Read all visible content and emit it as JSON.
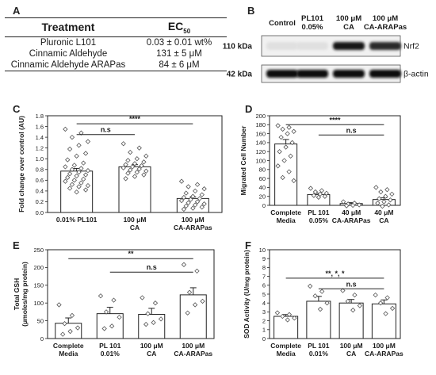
{
  "panel_letters": {
    "a": "A",
    "b": "B",
    "c": "C",
    "d": "D",
    "e": "E",
    "f": "F"
  },
  "ec50_table": {
    "header_treatment": "Treatment",
    "header_ec": "EC",
    "header_ec_sub": "50",
    "rows": [
      {
        "treatment": "Pluronic L101",
        "value": "0.03 ± 0.01 wt%"
      },
      {
        "treatment": "Cinnamic Aldehyde",
        "value": "131 ± 5 μM"
      },
      {
        "treatment": "Cinnamic Aldehyde ARAPas",
        "value": "84 ± 6 μM"
      }
    ]
  },
  "western_blot": {
    "lanes": [
      {
        "line1": "Control",
        "line2": ""
      },
      {
        "line1": "PL101",
        "line2": "0.05%"
      },
      {
        "line1": "100 μM",
        "line2": "CA"
      },
      {
        "line1": "100 μM",
        "line2": "CA-ARAPas"
      }
    ],
    "rows": [
      {
        "mw": "110 kDa",
        "protein": "Nrf2",
        "intensity": [
          0.05,
          0.05,
          0.95,
          0.85
        ]
      },
      {
        "mw": "42 kDa",
        "protein": "β-actin",
        "intensity": [
          1,
          1,
          1,
          1
        ]
      }
    ]
  },
  "chart_data": [
    {
      "id": "C",
      "type": "bar",
      "ylabel": "Fold change over control (AU)",
      "ylim": [
        0,
        1.8
      ],
      "yticks": [
        "0.0",
        "0.2",
        "0.4",
        "0.6",
        "0.8",
        "1.0",
        "1.2",
        "1.4",
        "1.6",
        "1.8"
      ],
      "categories": [
        [
          "0.01% PL101"
        ],
        [
          "100 μM",
          "CA"
        ],
        [
          "100 μM",
          "CA-ARAPas"
        ]
      ],
      "values": [
        0.77,
        0.85,
        0.26
      ],
      "errors": [
        0.05,
        0.04,
        0.03
      ],
      "points": [
        [
          1.55,
          1.48,
          1.4,
          1.32,
          1.25,
          1.18,
          1.1,
          1.05,
          0.98,
          0.92,
          0.88,
          0.85,
          0.82,
          0.8,
          0.78,
          0.75,
          0.72,
          0.7,
          0.68,
          0.65,
          0.62,
          0.6,
          0.58,
          0.55,
          0.52,
          0.5,
          0.48,
          0.45,
          0.42,
          0.38
        ],
        [
          1.28,
          1.2,
          1.12,
          1.05,
          1.0,
          0.97,
          0.94,
          0.91,
          0.89,
          0.87,
          0.85,
          0.83,
          0.81,
          0.79,
          0.77,
          0.75,
          0.73,
          0.7,
          0.67,
          0.63
        ],
        [
          0.58,
          0.52,
          0.48,
          0.44,
          0.4,
          0.36,
          0.33,
          0.3,
          0.28,
          0.26,
          0.24,
          0.22,
          0.2,
          0.18,
          0.16,
          0.14,
          0.12,
          0.1,
          0.08,
          0.06
        ]
      ],
      "brackets": [
        {
          "from": 0,
          "to": 1,
          "label": "n.s",
          "y": 1.45
        },
        {
          "from": 0,
          "to": 2,
          "label": "****",
          "y": 1.65
        }
      ]
    },
    {
      "id": "D",
      "type": "bar",
      "ylabel": "Migrated Cell Number",
      "ylim": [
        0,
        200
      ],
      "yticks": [
        "0",
        "20",
        "40",
        "60",
        "80",
        "100",
        "120",
        "140",
        "160",
        "180",
        "200"
      ],
      "categories": [
        [
          "Complete",
          "Media"
        ],
        [
          "PL 101",
          "0.05%"
        ],
        [
          "40 μM",
          "CA-ARAPas"
        ],
        [
          "40 μM",
          "CA"
        ]
      ],
      "values": [
        137,
        24,
        4,
        13
      ],
      "errors": [
        10,
        3,
        2,
        4
      ],
      "points": [
        [
          178,
          174,
          170,
          165,
          160,
          152,
          140,
          130,
          120,
          110,
          100,
          88,
          75,
          62,
          55
        ],
        [
          38,
          33,
          30,
          27,
          25,
          22,
          20,
          18
        ],
        [
          8,
          5,
          3,
          1,
          0,
          -1
        ],
        [
          40,
          35,
          30,
          25,
          20,
          15,
          12,
          8,
          5,
          1,
          -2
        ]
      ],
      "brackets": [
        {
          "from": 0,
          "to": 3,
          "label": "****",
          "y": 180
        },
        {
          "from": 1,
          "to": 3,
          "label": "n.s",
          "y": 157
        }
      ]
    },
    {
      "id": "E",
      "type": "bar",
      "ylabel": "Total GSH (μmoles/mg protein)",
      "ylim": [
        0,
        250
      ],
      "yticks": [
        "0",
        "50",
        "100",
        "150",
        "200",
        "250"
      ],
      "categories": [
        [
          "Complete",
          "Media"
        ],
        [
          "PL 101",
          "0.01%"
        ],
        [
          "100 μM",
          "CA"
        ],
        [
          "100 μM",
          "CA-ARAPas"
        ]
      ],
      "values": [
        43,
        70,
        68,
        123
      ],
      "errors": [
        15,
        18,
        17,
        20
      ],
      "points": [
        [
          95,
          65,
          42,
          30,
          20,
          12
        ],
        [
          120,
          108,
          75,
          60,
          35,
          28
        ],
        [
          115,
          100,
          70,
          55,
          45,
          40
        ],
        [
          208,
          190,
          130,
          105,
          95,
          72
        ]
      ],
      "brackets": [
        {
          "from": 0,
          "to": 3,
          "label": "**",
          "y": 225
        },
        {
          "from": 1,
          "to": 3,
          "label": "n.s",
          "y": 187
        }
      ]
    },
    {
      "id": "F",
      "type": "bar",
      "ylabel": "SOD Activity (U/mg protein)",
      "ylim": [
        0,
        10
      ],
      "yticks": [
        "0",
        "1",
        "2",
        "3",
        "4",
        "5",
        "6",
        "7",
        "8",
        "9",
        "10"
      ],
      "categories": [
        [
          "Complete",
          "Media"
        ],
        [
          "PL 101",
          "0.01%"
        ],
        [
          "100 μM",
          "CA"
        ],
        [
          "100 μM",
          "CA-ARAPas"
        ]
      ],
      "values": [
        2.5,
        4.2,
        4.0,
        3.9
      ],
      "errors": [
        0.2,
        0.55,
        0.4,
        0.45
      ],
      "points": [
        [
          2.9,
          2.7,
          2.5,
          2.3,
          2.1
        ],
        [
          5.9,
          5.3,
          4.8,
          4.0,
          3.3
        ],
        [
          5.4,
          4.9,
          4.2,
          3.7,
          3.2
        ],
        [
          4.9,
          4.6,
          4.0,
          3.4,
          2.8
        ]
      ],
      "brackets": [
        {
          "from": 0,
          "to": 3,
          "label": "**, *, *",
          "y": 6.8
        },
        {
          "from": 1,
          "to": 3,
          "label": "n.s",
          "y": 5.6
        }
      ]
    }
  ]
}
